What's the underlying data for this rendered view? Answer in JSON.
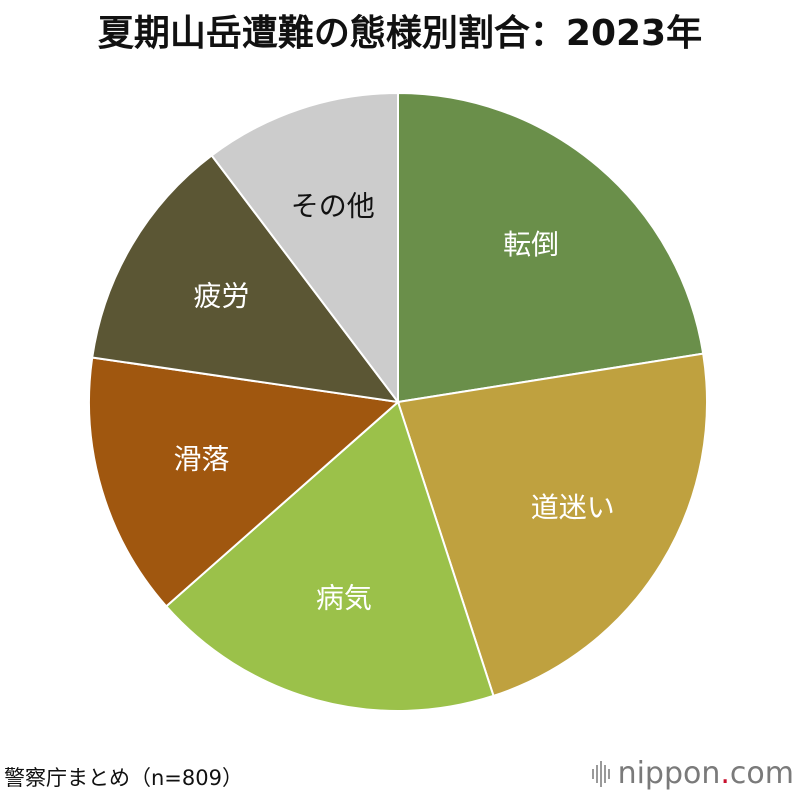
{
  "title": "夏期山岳遭難の態様別割合：2023年",
  "source": "警察庁まとめ（n=809）",
  "brand": {
    "name_left": "nippon",
    "dot": ".",
    "name_right": "com",
    "icon": "sound-wave-icon"
  },
  "chart_data": {
    "type": "pie",
    "title": "夏期山岳遭難の態様別割合：2023年",
    "n": 809,
    "slices": [
      {
        "label": "転倒",
        "value": 22.5,
        "color": "#6a8f4a",
        "label_color": "#ffffff"
      },
      {
        "label": "道迷い",
        "value": 22.5,
        "color": "#bfa13f",
        "label_color": "#ffffff"
      },
      {
        "label": "病気",
        "value": 18.5,
        "color": "#9bc14a",
        "label_color": "#ffffff"
      },
      {
        "label": "滑落",
        "value": 13.8,
        "color": "#a0570f",
        "label_color": "#ffffff"
      },
      {
        "label": "疲労",
        "value": 12.4,
        "color": "#5b5634",
        "label_color": "#ffffff"
      },
      {
        "label": "その他",
        "value": 10.3,
        "color": "#cccccc",
        "label_color": "#111111"
      }
    ]
  }
}
